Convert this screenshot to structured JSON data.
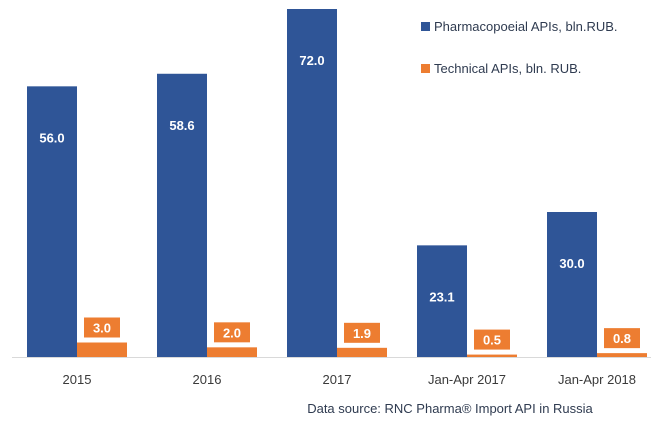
{
  "chart_data": {
    "type": "bar",
    "categories": [
      "2015",
      "2016",
      "2017",
      "Jan-Apr 2017",
      "Jan-Apr 2018"
    ],
    "series": [
      {
        "name": "Pharmacopoeial APIs, bln.RUB.",
        "values": [
          56.0,
          58.6,
          72.0,
          23.1,
          30.0
        ],
        "color": "#2f5597"
      },
      {
        "name": "Technical APIs, bln. RUB.",
        "values": [
          3.0,
          2.0,
          1.9,
          0.5,
          0.8
        ],
        "color": "#ed7d31"
      }
    ],
    "ylim": [
      0,
      72
    ],
    "grid": false,
    "legend_position": "top-right",
    "data_labels": true,
    "source_note": "Data source: RNC Pharma® Import API in Russia"
  }
}
